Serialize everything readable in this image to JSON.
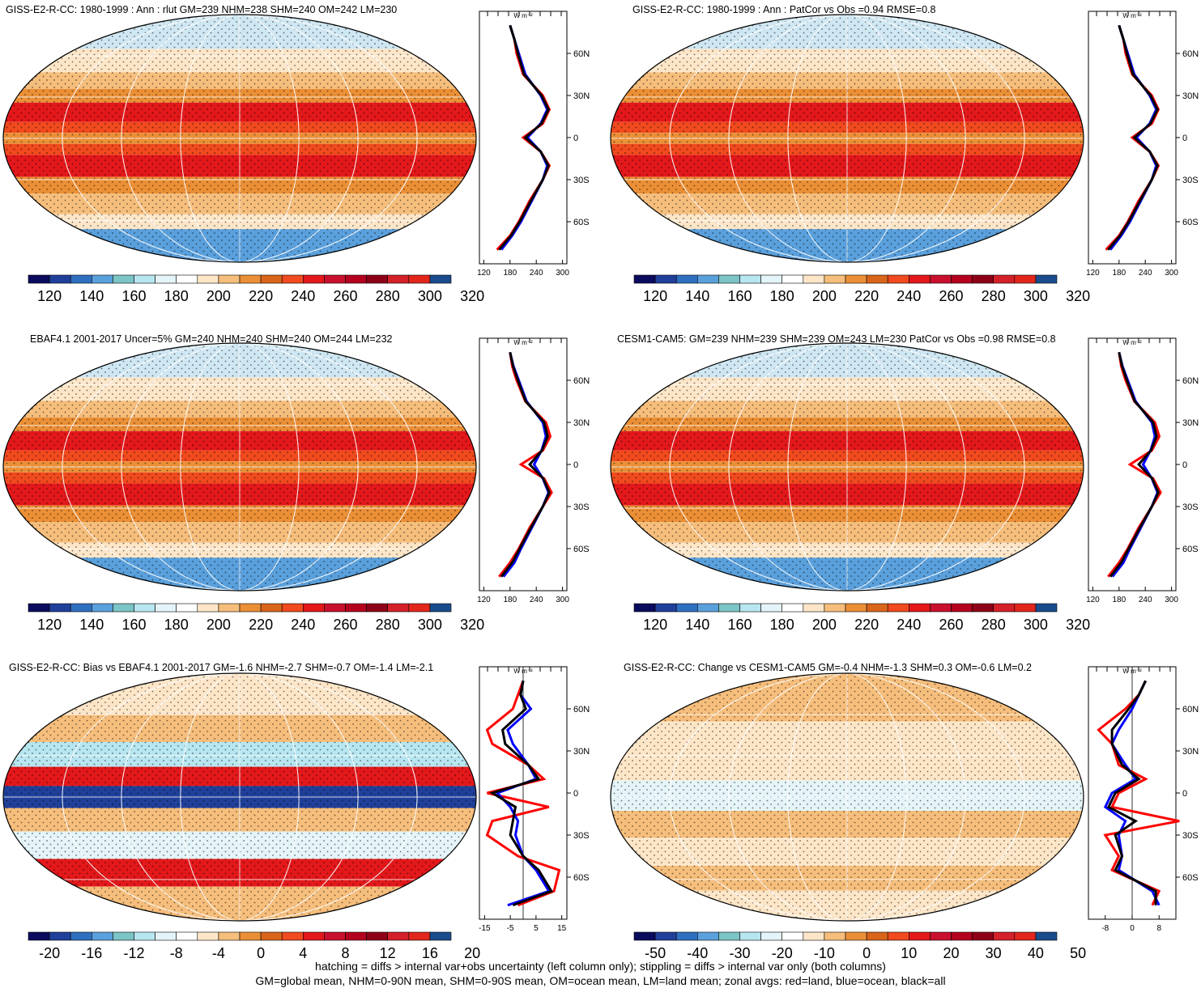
{
  "colors": {
    "abs_scale": [
      "#0b0b5e",
      "#1f3f9a",
      "#2f6fc0",
      "#5aa0dc",
      "#7cc4c6",
      "#b7e6f0",
      "#e4f4f8",
      "#ffffff",
      "#fde6c8",
      "#f6be7c",
      "#eb8f36",
      "#d9651a",
      "#f04a1e",
      "#e3181b",
      "#c8102e",
      "#b4001e",
      "#8e0018",
      "#d42028",
      "#e1261c",
      "#1a4c8c"
    ],
    "zonal_land": "#ff0000",
    "zonal_ocean": "#0000ff",
    "zonal_all": "#000000"
  },
  "panels": [
    {
      "id": "p1",
      "title": "GISS-E2-R-CC: 1980-1999 : Ann : rlut GM=239 NHM=238 SHM=240 OM=242 LM=230",
      "zonal_units": "W m⁻²",
      "zonal_lat_ticks": [
        "60N",
        "30N",
        "0",
        "30S",
        "60S"
      ],
      "zonal_x_ticks": [
        "120",
        "180",
        "240",
        "300"
      ],
      "colorbar_labels": [
        "120",
        "140",
        "160",
        "180",
        "200",
        "220",
        "240",
        "260",
        "280",
        "300",
        "320"
      ],
      "map_type": "abs"
    },
    {
      "id": "p2",
      "title": "GISS-E2-R-CC: 1980-1999 : Ann : PatCor vs Obs =0.94 RMSE=0.8",
      "zonal_units": "W m⁻²",
      "zonal_lat_ticks": [
        "60N",
        "30N",
        "0",
        "30S",
        "60S"
      ],
      "zonal_x_ticks": [
        "120",
        "180",
        "240",
        "300"
      ],
      "colorbar_labels": [
        "120",
        "140",
        "160",
        "180",
        "200",
        "220",
        "240",
        "260",
        "280",
        "300",
        "320"
      ],
      "map_type": "abs"
    },
    {
      "id": "p3",
      "title": "EBAF4.1 2001-2017 Uncer=5% GM=240 NHM=240 SHM=240 OM=244 LM=232",
      "zonal_units": "W m⁻²",
      "zonal_lat_ticks": [
        "60N",
        "30N",
        "0",
        "30S",
        "60S"
      ],
      "zonal_x_ticks": [
        "120",
        "180",
        "240",
        "300"
      ],
      "colorbar_labels": [
        "120",
        "140",
        "160",
        "180",
        "200",
        "220",
        "240",
        "260",
        "280",
        "300",
        "320"
      ],
      "map_type": "abs"
    },
    {
      "id": "p4",
      "title": "CESM1-CAM5: GM=239 NHM=239 SHM=239 OM=243 LM=230 PatCor vs Obs =0.98 RMSE=0.8",
      "zonal_units": "W m⁻²",
      "zonal_lat_ticks": [
        "60N",
        "30N",
        "0",
        "30S",
        "60S"
      ],
      "zonal_x_ticks": [
        "120",
        "180",
        "240",
        "300"
      ],
      "colorbar_labels": [
        "120",
        "140",
        "160",
        "180",
        "200",
        "220",
        "240",
        "260",
        "280",
        "300",
        "320"
      ],
      "map_type": "abs"
    },
    {
      "id": "p5",
      "title": "GISS-E2-R-CC: Bias vs EBAF4.1 2001-2017 GM=-1.6 NHM=-2.7 SHM=-0.7 OM=-1.4 LM=-2.1",
      "zonal_units": "W m⁻²",
      "zonal_lat_ticks": [
        "60N",
        "30N",
        "0",
        "30S",
        "60S"
      ],
      "zonal_x_ticks": [
        "-15",
        "-5",
        "5",
        "15"
      ],
      "colorbar_labels": [
        "-20",
        "-16",
        "-12",
        "-8",
        "-4",
        "0",
        "4",
        "8",
        "12",
        "16",
        "20"
      ],
      "map_type": "diff"
    },
    {
      "id": "p6",
      "title": "GISS-E2-R-CC: Change vs CESM1-CAM5 GM=-0.4 NHM=-1.3 SHM=0.3 OM=-0.6 LM=0.2",
      "zonal_units": "W m⁻²",
      "zonal_lat_ticks": [
        "60N",
        "30N",
        "0",
        "30S",
        "60S"
      ],
      "zonal_x_ticks": [
        "-8",
        "0",
        "8"
      ],
      "colorbar_labels": [
        "-50",
        "-40",
        "-30",
        "-20",
        "-10",
        "0",
        "10",
        "20",
        "30",
        "40",
        "50"
      ],
      "map_type": "change"
    }
  ],
  "footer": {
    "line1": "hatching = diffs > internal var+obs uncertainty (left column only); stippling = diffs > internal var only (both columns)",
    "line2": "GM=global mean, NHM=0-90N mean, SHM=0-90S mean, OM=ocean mean, LM=land mean; zonal avgs: red=land, blue=ocean, black=all"
  },
  "chart_data": [
    {
      "type": "heatmap",
      "title": "GISS-E2-R-CC: 1980-1999 : Ann : rlut GM=239 NHM=238 SHM=240 OM=242 LM=230",
      "colorbar": [
        120,
        140,
        160,
        180,
        200,
        220,
        240,
        260,
        280,
        300,
        320
      ],
      "zonal": {
        "lat": [
          80,
          70,
          60,
          45,
          30,
          20,
          10,
          0,
          -10,
          -20,
          -30,
          -45,
          -60,
          -70,
          -80
        ],
        "land": [
          180,
          190,
          195,
          210,
          255,
          270,
          255,
          210,
          250,
          270,
          255,
          225,
          200,
          180,
          150
        ],
        "ocean": [
          180,
          190,
          200,
          215,
          250,
          265,
          250,
          220,
          250,
          265,
          255,
          230,
          205,
          185,
          160
        ],
        "all": [
          180,
          190,
          198,
          212,
          252,
          268,
          252,
          215,
          250,
          268,
          255,
          228,
          202,
          182,
          155
        ]
      }
    },
    {
      "type": "heatmap",
      "title": "GISS-E2-R-CC: 1980-1999 : Ann : PatCor vs Obs =0.94 RMSE=0.8",
      "colorbar": [
        120,
        140,
        160,
        180,
        200,
        220,
        240,
        260,
        280,
        300,
        320
      ],
      "zonal": {
        "lat": [
          80,
          70,
          60,
          45,
          30,
          20,
          10,
          0,
          -10,
          -20,
          -30,
          -45,
          -60,
          -70,
          -80
        ],
        "land": [
          180,
          190,
          195,
          210,
          255,
          270,
          255,
          210,
          250,
          270,
          255,
          225,
          200,
          180,
          150
        ],
        "ocean": [
          180,
          190,
          200,
          215,
          250,
          265,
          250,
          220,
          250,
          265,
          255,
          230,
          205,
          185,
          160
        ],
        "all": [
          180,
          190,
          198,
          212,
          252,
          268,
          252,
          215,
          250,
          268,
          255,
          228,
          202,
          182,
          155
        ]
      }
    },
    {
      "type": "heatmap",
      "title": "EBAF4.1 2001-2017 Uncer=5% GM=240 NHM=240 SHM=240 OM=244 LM=232",
      "colorbar": [
        120,
        140,
        160,
        180,
        200,
        220,
        240,
        260,
        280,
        300,
        320
      ],
      "zonal": {
        "lat": [
          80,
          70,
          60,
          45,
          30,
          20,
          10,
          0,
          -10,
          -20,
          -30,
          -45,
          -60,
          -70,
          -80
        ],
        "land": [
          180,
          185,
          195,
          215,
          262,
          272,
          255,
          205,
          258,
          275,
          255,
          225,
          200,
          180,
          155
        ],
        "ocean": [
          180,
          188,
          200,
          218,
          255,
          262,
          252,
          235,
          255,
          268,
          255,
          230,
          205,
          190,
          165
        ],
        "all": [
          180,
          187,
          198,
          216,
          258,
          266,
          253,
          225,
          256,
          270,
          255,
          228,
          202,
          185,
          160
        ]
      }
    },
    {
      "type": "heatmap",
      "title": "CESM1-CAM5: GM=239 NHM=239 SHM=239 OM=243 LM=230 PatCor vs Obs =0.98 RMSE=0.8",
      "colorbar": [
        120,
        140,
        160,
        180,
        200,
        220,
        240,
        260,
        280,
        300,
        320
      ],
      "zonal": {
        "lat": [
          80,
          70,
          60,
          45,
          30,
          20,
          10,
          0,
          -10,
          -20,
          -30,
          -45,
          -60,
          -70,
          -80
        ],
        "land": [
          180,
          185,
          195,
          215,
          262,
          272,
          255,
          205,
          258,
          275,
          255,
          225,
          200,
          180,
          155
        ],
        "ocean": [
          180,
          188,
          200,
          218,
          255,
          262,
          252,
          235,
          255,
          268,
          255,
          230,
          205,
          190,
          165
        ],
        "all": [
          180,
          187,
          198,
          216,
          258,
          266,
          253,
          225,
          256,
          270,
          255,
          228,
          202,
          185,
          160
        ]
      }
    },
    {
      "type": "heatmap",
      "title": "GISS-E2-R-CC: Bias vs EBAF4.1 2001-2017 GM=-1.6 NHM=-2.7 SHM=-0.7 OM=-1.4 LM=-2.1",
      "colorbar": [
        -20,
        -16,
        -12,
        -8,
        -4,
        0,
        4,
        8,
        12,
        16,
        20
      ],
      "zonal": {
        "lat": [
          80,
          70,
          60,
          45,
          35,
          20,
          10,
          0,
          -10,
          -20,
          -30,
          -45,
          -55,
          -70,
          -80
        ],
        "land": [
          0,
          -2,
          -4,
          -14,
          -12,
          2,
          8,
          -14,
          10,
          -12,
          -14,
          -2,
          14,
          12,
          -2
        ],
        "ocean": [
          0,
          -1,
          3,
          -6,
          -4,
          2,
          5,
          -10,
          -5,
          -2,
          -3,
          0,
          5,
          10,
          -6
        ],
        "all": [
          0,
          -1,
          1,
          -8,
          -7,
          2,
          6,
          -12,
          -3,
          -4,
          -5,
          0,
          6,
          11,
          -4
        ]
      }
    },
    {
      "type": "heatmap",
      "title": "GISS-E2-R-CC: Change vs CESM1-CAM5 GM=-0.4 NHM=-1.3 SHM=0.3 OM=-0.6 LM=0.2",
      "colorbar": [
        -50,
        -40,
        -30,
        -20,
        -10,
        0,
        10,
        20,
        30,
        40,
        50
      ],
      "zonal": {
        "lat": [
          80,
          70,
          60,
          45,
          35,
          20,
          10,
          0,
          -10,
          -20,
          -30,
          -45,
          -55,
          -70,
          -80
        ],
        "land": [
          4,
          2,
          -2,
          -10,
          -6,
          -4,
          4,
          -4,
          -6,
          14,
          -8,
          -4,
          -6,
          8,
          6
        ],
        "ocean": [
          4,
          2,
          0,
          -4,
          -6,
          -2,
          1,
          -6,
          -8,
          -2,
          -4,
          -3,
          -4,
          6,
          8
        ],
        "all": [
          4,
          2,
          -1,
          -6,
          -6,
          -3,
          2,
          -5,
          -7,
          1,
          -5,
          -3,
          -5,
          7,
          7
        ]
      }
    }
  ]
}
